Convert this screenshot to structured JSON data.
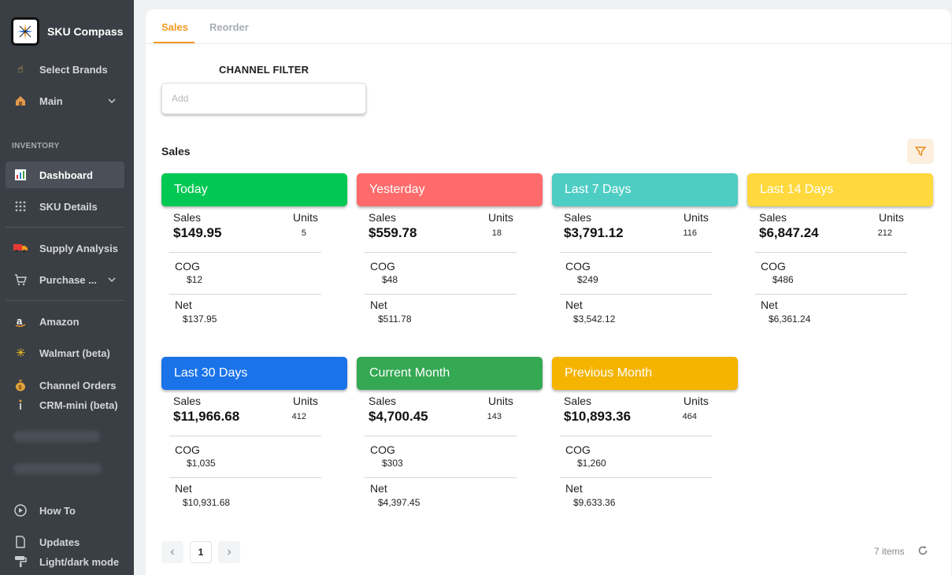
{
  "app": {
    "name": "SKU Compass"
  },
  "sidebar": {
    "section_inventory": "INVENTORY",
    "items": [
      {
        "label": "Select Brands",
        "icon": "pointing-hand-icon"
      },
      {
        "label": "Main",
        "icon": "house-icon"
      },
      {
        "label": "Dashboard",
        "icon": "bar-chart-icon"
      },
      {
        "label": "SKU Details",
        "icon": "grid-icon"
      },
      {
        "label": "Supply Analysis",
        "icon": "truck-icon"
      },
      {
        "label": "Purchase ...",
        "icon": "cart-icon"
      },
      {
        "label": "Amazon",
        "icon": "amazon-icon"
      },
      {
        "label": "Walmart (beta)",
        "icon": "walmart-spark-icon"
      },
      {
        "label": "Channel Orders",
        "icon": "money-bag-icon"
      },
      {
        "label": "CRM-mini (beta)",
        "icon": "info-icon"
      },
      {
        "label": "How To",
        "icon": "play-circle-icon"
      },
      {
        "label": "Updates",
        "icon": "document-icon"
      },
      {
        "label": "Light/dark mode",
        "icon": "paint-roller-icon"
      }
    ]
  },
  "tabs": [
    {
      "label": "Sales"
    },
    {
      "label": "Reorder"
    }
  ],
  "channel_filter": {
    "label": "CHANNEL FILTER",
    "placeholder": "Add"
  },
  "sales_section": {
    "title": "Sales"
  },
  "labels": {
    "sales": "Sales",
    "units": "Units",
    "cog": "COG",
    "net": "Net"
  },
  "cards": [
    {
      "title": "Today",
      "color": "#00c853",
      "sales": "$149.95",
      "units": "5",
      "cog": "$12",
      "net": "$137.95"
    },
    {
      "title": "Yesterday",
      "color": "#ff6b6b",
      "sales": "$559.78",
      "units": "18",
      "cog": "$48",
      "net": "$511.78"
    },
    {
      "title": "Last 7 Days",
      "color": "#4ecdc4",
      "sales": "$3,791.12",
      "units": "116",
      "cog": "$249",
      "net": "$3,542.12"
    },
    {
      "title": "Last 14 Days",
      "color": "#ffd93d",
      "sales": "$6,847.24",
      "units": "212",
      "cog": "$486",
      "net": "$6,361.24"
    },
    {
      "title": "Last 30 Days",
      "color": "#1a73e8",
      "sales": "$11,966.68",
      "units": "412",
      "cog": "$1,035",
      "net": "$10,931.68"
    },
    {
      "title": "Current Month",
      "color": "#34a853",
      "sales": "$4,700.45",
      "units": "143",
      "cog": "$303",
      "net": "$4,397.45"
    },
    {
      "title": "Previous Month",
      "color": "#f4b400",
      "sales": "$10,893.36",
      "units": "464",
      "cog": "$1,260",
      "net": "$9,633.36"
    }
  ],
  "pagination": {
    "current_page": "1",
    "items_count": "7 items"
  }
}
